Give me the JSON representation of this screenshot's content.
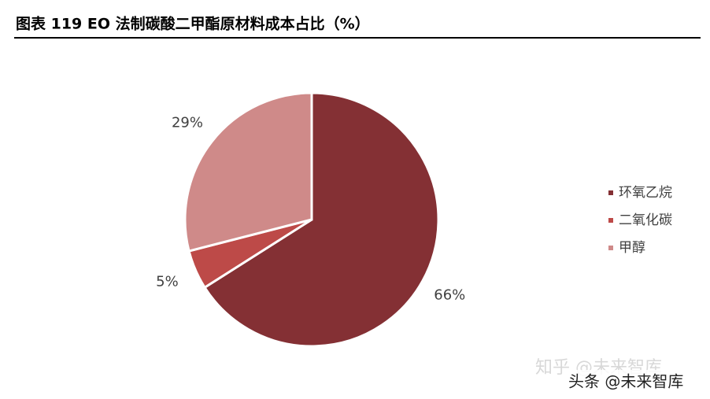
{
  "chart_data": {
    "type": "pie",
    "title": "图表 119 EO 法制碳酸二甲酯原材料成本占比（%）",
    "categories": [
      "环氧乙烷",
      "二氧化碳",
      "甲醇"
    ],
    "values": [
      66,
      5,
      29
    ],
    "value_labels": [
      "66%",
      "5%",
      "29%"
    ],
    "colors": [
      "#843034",
      "#bd4a48",
      "#cf8a89"
    ],
    "legend": "right"
  },
  "watermarks": [
    "知乎 @未来智库",
    "头条 @未来智库"
  ]
}
